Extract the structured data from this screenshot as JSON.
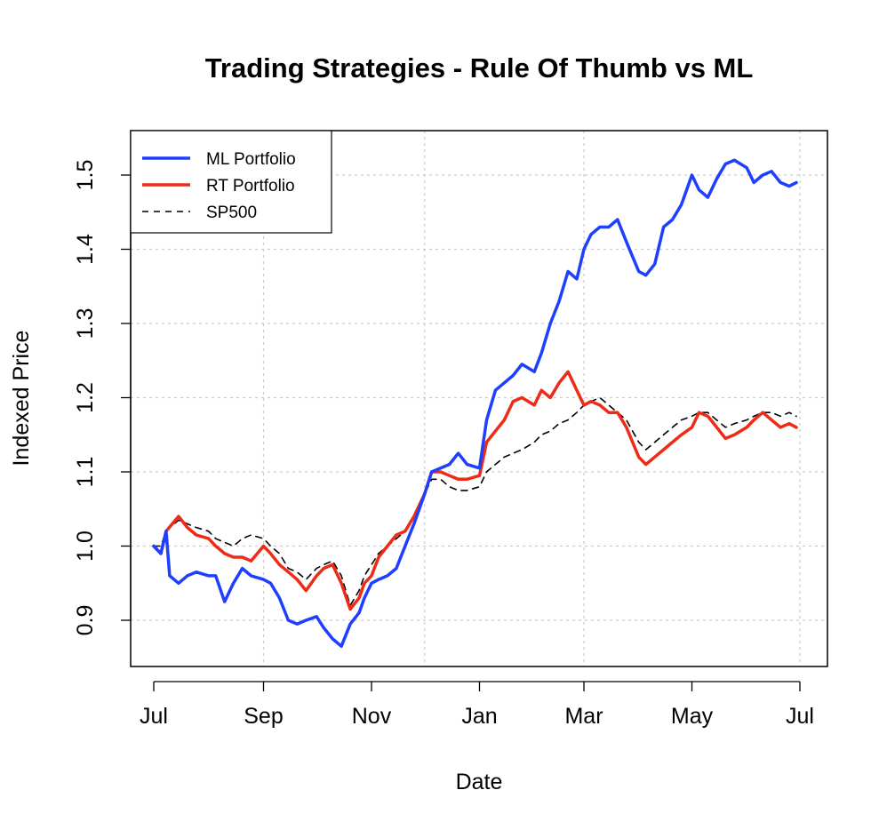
{
  "chart_data": {
    "type": "line",
    "title": "Trading Strategies - Rule Of Thumb vs ML",
    "xlabel": "Date",
    "ylabel": "Indexed Price",
    "x_ticks": [
      "Jul",
      "Sep",
      "Nov",
      "Jan",
      "Mar",
      "May",
      "Jul"
    ],
    "y_ticks": [
      "0.9",
      "1.0",
      "1.1",
      "1.2",
      "1.3",
      "1.4",
      "1.5"
    ],
    "y_tick_values": [
      0.9,
      1.0,
      1.1,
      1.2,
      1.3,
      1.4,
      1.5
    ],
    "ylim": [
      0.85,
      1.56
    ],
    "grid": true,
    "legend_position": "top-left",
    "colors": {
      "ml": "#1f3fff",
      "rt": "#ee2b16",
      "sp": "#000000"
    },
    "series": [
      {
        "name": "ML Portfolio",
        "style": "solid",
        "x": [
          "07-01",
          "07-05",
          "07-08",
          "07-10",
          "07-15",
          "07-20",
          "07-25",
          "08-01",
          "08-05",
          "08-10",
          "08-15",
          "08-20",
          "08-25",
          "09-01",
          "09-05",
          "09-10",
          "09-15",
          "09-20",
          "09-25",
          "10-01",
          "10-05",
          "10-10",
          "10-15",
          "10-20",
          "10-25",
          "10-28",
          "11-01",
          "11-05",
          "11-10",
          "11-15",
          "11-20",
          "11-25",
          "12-01",
          "12-05",
          "12-10",
          "12-15",
          "12-20",
          "12-25",
          "01-01",
          "01-05",
          "01-10",
          "01-15",
          "01-20",
          "01-25",
          "02-01",
          "02-05",
          "02-10",
          "02-15",
          "02-20",
          "02-25",
          "03-01",
          "03-05",
          "03-10",
          "03-15",
          "03-20",
          "03-25",
          "04-01",
          "04-05",
          "04-10",
          "04-15",
          "04-20",
          "04-25",
          "05-01",
          "05-05",
          "05-10",
          "05-15",
          "05-20",
          "05-25",
          "06-01",
          "06-05",
          "06-10",
          "06-15",
          "06-20",
          "06-25",
          "06-29"
        ],
        "values": [
          1.0,
          0.99,
          1.02,
          0.96,
          0.95,
          0.96,
          0.965,
          0.96,
          0.96,
          0.925,
          0.95,
          0.97,
          0.96,
          0.955,
          0.95,
          0.93,
          0.9,
          0.895,
          0.9,
          0.905,
          0.89,
          0.875,
          0.865,
          0.895,
          0.91,
          0.93,
          0.95,
          0.955,
          0.96,
          0.97,
          1.0,
          1.03,
          1.07,
          1.1,
          1.105,
          1.11,
          1.125,
          1.11,
          1.105,
          1.17,
          1.21,
          1.22,
          1.23,
          1.245,
          1.235,
          1.26,
          1.3,
          1.33,
          1.37,
          1.36,
          1.4,
          1.42,
          1.43,
          1.43,
          1.44,
          1.41,
          1.37,
          1.365,
          1.38,
          1.43,
          1.44,
          1.46,
          1.5,
          1.48,
          1.47,
          1.495,
          1.515,
          1.52,
          1.51,
          1.49,
          1.5,
          1.505,
          1.49,
          1.485,
          1.49
        ]
      },
      {
        "name": "RT Portfolio",
        "style": "solid",
        "x": [
          "07-01",
          "07-05",
          "07-08",
          "07-15",
          "07-20",
          "07-25",
          "08-01",
          "08-05",
          "08-10",
          "08-15",
          "08-20",
          "08-25",
          "09-01",
          "09-05",
          "09-10",
          "09-15",
          "09-20",
          "09-25",
          "10-01",
          "10-05",
          "10-10",
          "10-15",
          "10-20",
          "10-25",
          "10-28",
          "11-01",
          "11-05",
          "11-10",
          "11-15",
          "11-20",
          "11-25",
          "12-01",
          "12-05",
          "12-10",
          "12-15",
          "12-20",
          "12-25",
          "01-01",
          "01-05",
          "01-10",
          "01-15",
          "01-20",
          "01-25",
          "02-01",
          "02-05",
          "02-10",
          "02-15",
          "02-20",
          "02-25",
          "03-01",
          "03-05",
          "03-10",
          "03-15",
          "03-20",
          "03-25",
          "04-01",
          "04-05",
          "04-10",
          "04-15",
          "04-20",
          "04-25",
          "05-01",
          "05-05",
          "05-10",
          "05-15",
          "05-20",
          "05-25",
          "06-01",
          "06-05",
          "06-10",
          "06-15",
          "06-20",
          "06-25",
          "06-29"
        ],
        "values": [
          1.0,
          0.99,
          1.02,
          1.04,
          1.025,
          1.015,
          1.01,
          1.0,
          0.99,
          0.985,
          0.985,
          0.98,
          1.0,
          0.99,
          0.975,
          0.965,
          0.955,
          0.94,
          0.96,
          0.97,
          0.975,
          0.95,
          0.915,
          0.93,
          0.95,
          0.96,
          0.985,
          1.0,
          1.015,
          1.02,
          1.04,
          1.07,
          1.1,
          1.1,
          1.095,
          1.09,
          1.09,
          1.095,
          1.14,
          1.155,
          1.17,
          1.195,
          1.2,
          1.19,
          1.21,
          1.2,
          1.22,
          1.235,
          1.21,
          1.19,
          1.195,
          1.19,
          1.18,
          1.18,
          1.16,
          1.12,
          1.11,
          1.12,
          1.13,
          1.14,
          1.15,
          1.16,
          1.18,
          1.175,
          1.16,
          1.145,
          1.15,
          1.16,
          1.17,
          1.18,
          1.17,
          1.16,
          1.165,
          1.16
        ]
      },
      {
        "name": "SP500",
        "style": "dashed",
        "x": [
          "07-01",
          "07-05",
          "07-08",
          "07-15",
          "07-20",
          "07-25",
          "08-01",
          "08-05",
          "08-10",
          "08-15",
          "08-20",
          "08-25",
          "09-01",
          "09-05",
          "09-10",
          "09-15",
          "09-20",
          "09-25",
          "10-01",
          "10-05",
          "10-10",
          "10-15",
          "10-20",
          "10-25",
          "10-28",
          "11-01",
          "11-05",
          "11-10",
          "11-15",
          "11-20",
          "11-25",
          "12-01",
          "12-05",
          "12-10",
          "12-15",
          "12-20",
          "12-25",
          "01-01",
          "01-05",
          "01-10",
          "01-15",
          "01-20",
          "01-25",
          "02-01",
          "02-05",
          "02-10",
          "02-15",
          "02-20",
          "02-25",
          "03-01",
          "03-05",
          "03-10",
          "03-15",
          "03-20",
          "03-25",
          "04-01",
          "04-05",
          "04-10",
          "04-15",
          "04-20",
          "04-25",
          "05-01",
          "05-05",
          "05-10",
          "05-15",
          "05-20",
          "05-25",
          "06-01",
          "06-05",
          "06-10",
          "06-15",
          "06-20",
          "06-25",
          "06-29"
        ],
        "values": [
          1.0,
          1.0,
          1.02,
          1.035,
          1.03,
          1.025,
          1.02,
          1.01,
          1.005,
          1.0,
          1.01,
          1.015,
          1.01,
          1.0,
          0.99,
          0.97,
          0.965,
          0.955,
          0.97,
          0.975,
          0.98,
          0.96,
          0.92,
          0.94,
          0.96,
          0.975,
          0.99,
          1.0,
          1.01,
          1.02,
          1.04,
          1.07,
          1.09,
          1.09,
          1.08,
          1.075,
          1.075,
          1.08,
          1.1,
          1.11,
          1.12,
          1.125,
          1.13,
          1.14,
          1.15,
          1.155,
          1.165,
          1.17,
          1.18,
          1.19,
          1.195,
          1.2,
          1.19,
          1.18,
          1.17,
          1.14,
          1.13,
          1.14,
          1.15,
          1.16,
          1.17,
          1.175,
          1.18,
          1.18,
          1.17,
          1.16,
          1.165,
          1.17,
          1.175,
          1.18,
          1.18,
          1.175,
          1.18,
          1.175
        ]
      }
    ]
  }
}
